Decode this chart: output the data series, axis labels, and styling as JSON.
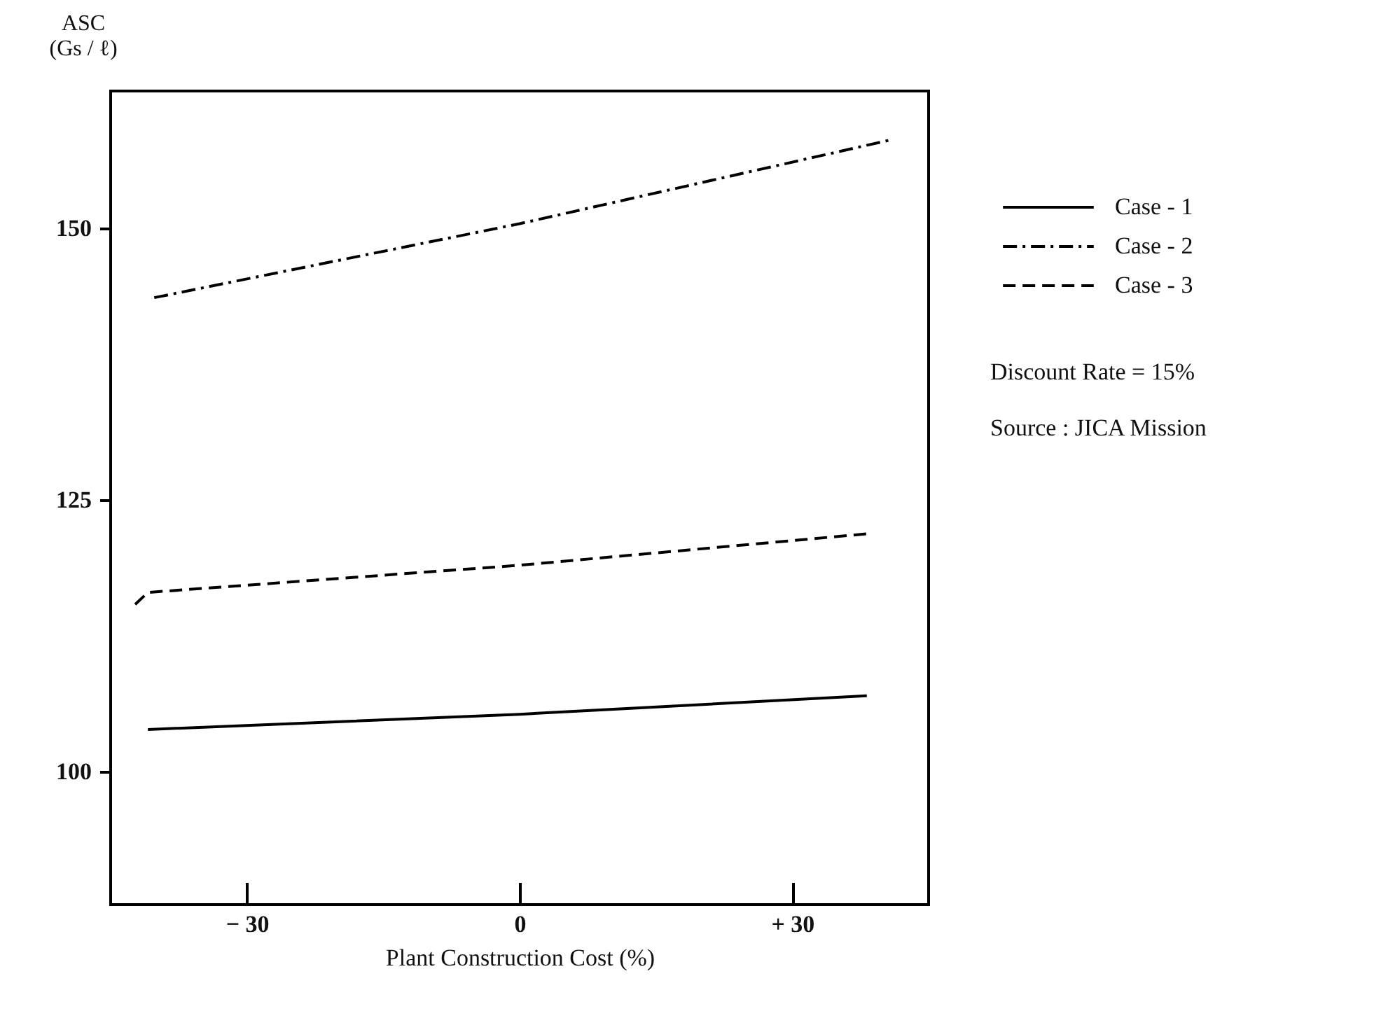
{
  "chart_data": {
    "type": "line",
    "xlabel": "Plant Construction Cost (%)",
    "ylabel": "ASC (Gs / ℓ)",
    "xlim": [
      -45,
      45
    ],
    "xticks": [
      {
        "value": -30,
        "label": "− 30"
      },
      0,
      {
        "value": 30,
        "label": "+ 30"
      }
    ],
    "ylim": [
      87.8,
      162.6
    ],
    "yticks": [
      100,
      125,
      150
    ],
    "grid": false,
    "legend": "right",
    "marker": "none",
    "series": [
      {
        "name": "Case - 1",
        "color": "#000000",
        "line_style": "solid",
        "x": [
          -40.9,
          0,
          38.2
        ],
        "values": [
          103.9,
          105.3,
          107.0
        ]
      },
      {
        "name": "Case - 2",
        "color": "#000000",
        "line_style": "dashdot",
        "x": [
          -40.2,
          0,
          40.8
        ],
        "values": [
          143.6,
          150.4,
          158.1
        ]
      },
      {
        "name": "Case - 3",
        "color": "#000000",
        "line_style": "dashed",
        "x": [
          -42.3,
          -40.9,
          0,
          38.4
        ],
        "values": [
          115.4,
          116.5,
          119.0,
          121.9
        ]
      }
    ],
    "annotations": [
      "Discount Rate = 15%",
      "Source :  JICA Mission"
    ]
  }
}
